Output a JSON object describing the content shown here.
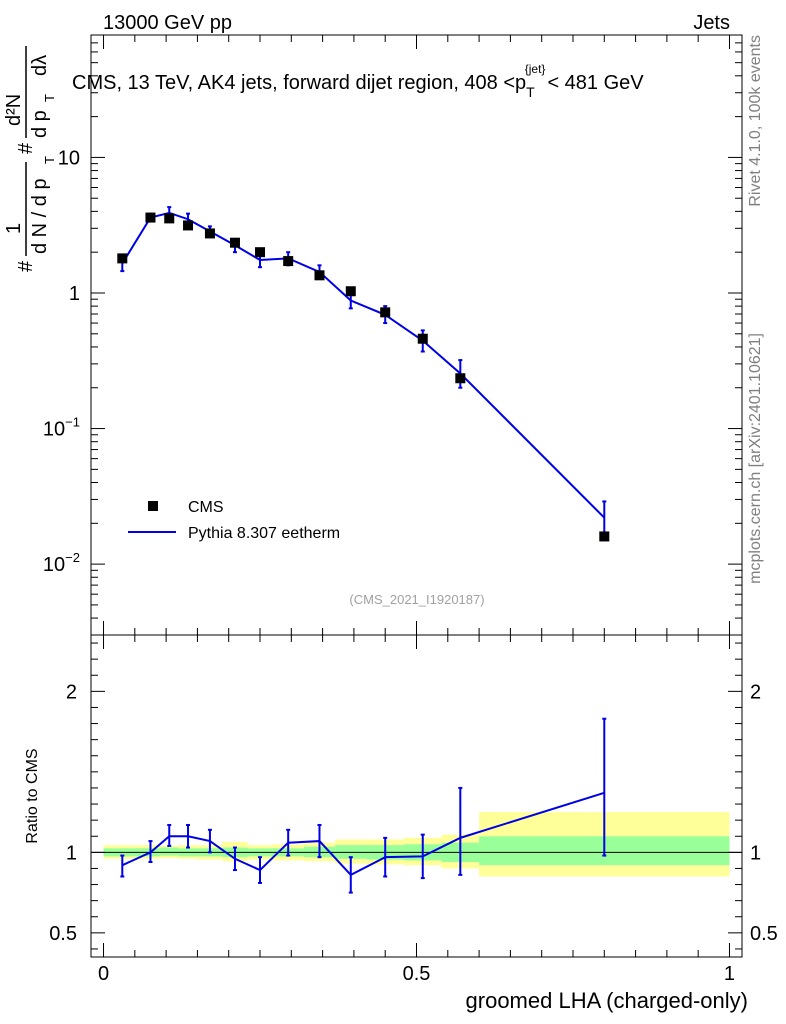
{
  "header": {
    "left": "13000 GeV pp",
    "right": "Jets"
  },
  "title": {
    "main": "CMS, 13 TeV, AK4 jets, forward dijet region, 408 <p",
    "sub": "T",
    "sup": "{jet}",
    "tail": "< 481 GeV"
  },
  "side_labels": {
    "rivet": "Rivet 4.1.0,  100k events",
    "mcplots": "mcplots.cern.ch [arXiv:2401.10621]"
  },
  "analysis_id": "(CMS_2021_I1920187)",
  "y_label_top": {
    "hash1": "#",
    "one": "1",
    "dn_denominator": "d N / d p",
    "T1": "T",
    "hash2": "#",
    "d2N": "d²N",
    "dpdl": "d p",
    "T2": "T",
    "dlambda": "dλ"
  },
  "y_label_ratio": "Ratio to CMS",
  "x_label": "groomed LHA (charged-only)",
  "legend": [
    {
      "label": "CMS",
      "color": "#000000",
      "style": "marker"
    },
    {
      "label": "Pythia 8.307 eetherm",
      "color": "#0000e6",
      "style": "line"
    }
  ],
  "chart_data": [
    {
      "type": "scatter",
      "panel": "main",
      "yscale": "log",
      "xlim": [
        -0.02,
        1.02
      ],
      "ylim": [
        0.003,
        80
      ],
      "yticks": [
        {
          "value": 0.01,
          "base": "10",
          "exp": "−2"
        },
        {
          "value": 0.1,
          "base": "10",
          "exp": "−1"
        },
        {
          "value": 1,
          "base": "1",
          "exp": ""
        },
        {
          "value": 10,
          "base": "10",
          "exp": ""
        }
      ],
      "series": [
        {
          "name": "CMS",
          "x": [
            0.03,
            0.075,
            0.105,
            0.135,
            0.17,
            0.21,
            0.25,
            0.295,
            0.345,
            0.395,
            0.45,
            0.51,
            0.57,
            0.8
          ],
          "y": [
            1.8,
            3.6,
            3.55,
            3.15,
            2.75,
            2.35,
            2.0,
            1.72,
            1.35,
            1.03,
            0.72,
            0.46,
            0.235,
            0.016
          ]
        },
        {
          "name": "Pythia 8.307 eetherm",
          "x": [
            0.03,
            0.075,
            0.105,
            0.135,
            0.17,
            0.21,
            0.25,
            0.295,
            0.345,
            0.395,
            0.45,
            0.51,
            0.57,
            0.8
          ],
          "y": [
            1.65,
            3.6,
            3.9,
            3.5,
            2.85,
            2.25,
            1.75,
            1.8,
            1.43,
            0.88,
            0.69,
            0.445,
            0.255,
            0.022
          ],
          "yerr_low": [
            1.45,
            3.4,
            3.5,
            3.2,
            2.6,
            2.0,
            1.55,
            1.6,
            1.28,
            0.77,
            0.6,
            0.37,
            0.2,
            0.016
          ],
          "yerr_high": [
            1.85,
            3.85,
            4.3,
            3.85,
            3.1,
            2.5,
            1.95,
            2.0,
            1.6,
            1.0,
            0.8,
            0.53,
            0.32,
            0.029
          ]
        }
      ]
    },
    {
      "type": "line",
      "panel": "ratio",
      "xlim": [
        -0.02,
        1.02
      ],
      "ylim": [
        0.35,
        2.35
      ],
      "yticks": [
        0.5,
        1,
        2
      ],
      "xticks": [
        0,
        0.5,
        1
      ],
      "xtick_labels": [
        "0",
        "0.5",
        "1"
      ],
      "bands": {
        "bin_edges": [
          0,
          0.06,
          0.09,
          0.12,
          0.15,
          0.19,
          0.23,
          0.27,
          0.32,
          0.37,
          0.42,
          0.48,
          0.54,
          0.6,
          1.0
        ],
        "green_low": [
          0.975,
          0.975,
          0.98,
          0.975,
          0.975,
          0.97,
          0.975,
          0.975,
          0.97,
          0.96,
          0.955,
          0.95,
          0.94,
          0.92
        ],
        "green_high": [
          1.025,
          1.025,
          1.03,
          1.025,
          1.025,
          1.03,
          1.025,
          1.025,
          1.035,
          1.045,
          1.045,
          1.05,
          1.06,
          1.1
        ],
        "yellow_low": [
          0.96,
          0.96,
          0.965,
          0.96,
          0.955,
          0.945,
          0.955,
          0.95,
          0.945,
          0.93,
          0.925,
          0.92,
          0.9,
          0.85
        ],
        "yellow_high": [
          1.045,
          1.045,
          1.04,
          1.045,
          1.045,
          1.065,
          1.045,
          1.05,
          1.06,
          1.08,
          1.08,
          1.09,
          1.11,
          1.25
        ]
      },
      "series": [
        {
          "name": "Pythia 8.307 eetherm / CMS",
          "x": [
            0.03,
            0.075,
            0.105,
            0.135,
            0.17,
            0.21,
            0.25,
            0.295,
            0.345,
            0.395,
            0.45,
            0.51,
            0.57,
            0.8
          ],
          "y": [
            0.92,
            1.0,
            1.1,
            1.1,
            1.07,
            0.96,
            0.89,
            1.06,
            1.07,
            0.86,
            0.97,
            0.975,
            1.09,
            1.37
          ],
          "yerr_low": [
            0.85,
            0.94,
            1.04,
            1.03,
            1.0,
            0.89,
            0.81,
            0.98,
            0.97,
            0.75,
            0.85,
            0.84,
            0.86,
            0.98
          ],
          "yerr_high": [
            0.98,
            1.07,
            1.17,
            1.17,
            1.14,
            1.03,
            0.97,
            1.14,
            1.17,
            0.97,
            1.09,
            1.11,
            1.4,
            1.83
          ]
        }
      ]
    }
  ]
}
